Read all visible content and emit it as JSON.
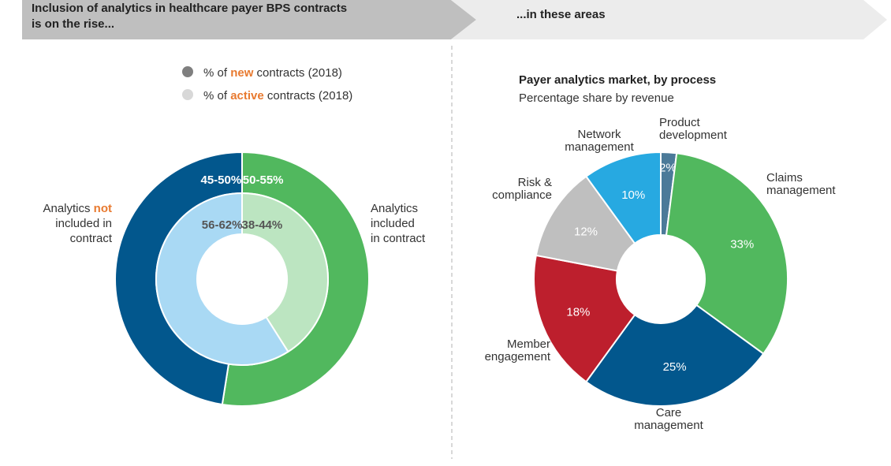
{
  "header": {
    "left_line1": "Inclusion of analytics in healthcare payer BPS contracts",
    "left_line2": "is on the rise...",
    "right": "...in these areas"
  },
  "colors": {
    "new_not": "#02578d",
    "new_included": "#51b85e",
    "active_not": "#a9d9f4",
    "active_included": "#bce5c1",
    "legend_new": "#7f7f7f",
    "legend_active": "#d8d8d8",
    "accent_orange": "#e87a30",
    "banner_left": "#bfbfbf",
    "banner_right": "#ececec"
  },
  "chart_data": [
    {
      "type": "pie",
      "variant": "nested-donut",
      "legend": [
        {
          "prefix": "% of ",
          "highlight": "new",
          "suffix": " contracts (2018)",
          "marker": "dark-grey-circle"
        },
        {
          "prefix": "% of ",
          "highlight": "active",
          "suffix": " contracts (2018)",
          "marker": "light-grey-circle"
        }
      ],
      "legend_placement": "top",
      "categories_labels": {
        "not_included": {
          "line1_prefix": "Analytics ",
          "line1_highlight": "not",
          "line2": "included in",
          "line3": "contract"
        },
        "included": {
          "line1": "Analytics",
          "line2": "included",
          "line3": "in contract"
        }
      },
      "series": [
        {
          "ring": "outer",
          "legend": "new",
          "slices": [
            {
              "category": "Analytics included in contract",
              "label": "50-55%",
              "value": 52.5
            },
            {
              "category": "Analytics not included in contract",
              "label": "45-50%",
              "value": 47.5
            }
          ]
        },
        {
          "ring": "inner",
          "legend": "active",
          "slices": [
            {
              "category": "Analytics included in contract",
              "label": "38-44%",
              "value": 41
            },
            {
              "category": "Analytics not included in contract",
              "label": "56-62%",
              "value": 59
            }
          ]
        }
      ]
    },
    {
      "type": "pie",
      "variant": "donut",
      "title": "Payer analytics market, by process",
      "subtitle": "Percentage share by revenue",
      "slices": [
        {
          "name_lines": [
            "Product",
            "development"
          ],
          "value": 2,
          "label": "2%",
          "color": "#4b7a99"
        },
        {
          "name_lines": [
            "Claims",
            "management"
          ],
          "value": 33,
          "label": "33%",
          "color": "#51b85e"
        },
        {
          "name_lines": [
            "Care",
            "management"
          ],
          "value": 25,
          "label": "25%",
          "color": "#02578d"
        },
        {
          "name_lines": [
            "Member",
            "engagement"
          ],
          "value": 18,
          "label": "18%",
          "color": "#bd1f2d"
        },
        {
          "name_lines": [
            "Risk &",
            "compliance"
          ],
          "value": 12,
          "label": "12%",
          "color": "#bfbfbf"
        },
        {
          "name_lines": [
            "Network",
            "management"
          ],
          "value": 10,
          "label": "10%",
          "color": "#27a9e1"
        }
      ]
    }
  ]
}
